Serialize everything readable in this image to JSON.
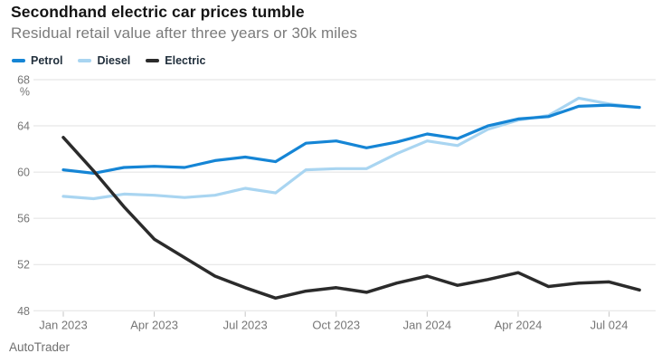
{
  "header": {
    "title": "Secondhand electric car prices tumble",
    "subtitle": "Residual retail value after three years or 30k miles"
  },
  "source": "AutoTrader",
  "colors": {
    "petrol": "#1585d5",
    "diesel": "#a9d5f1",
    "electric": "#2b2b2b",
    "grid": "#e2e2e2",
    "tick": "#c6c6c6",
    "axis_text": "#767676",
    "legend_text": "#22303d"
  },
  "chart_data": {
    "type": "line",
    "title": "Secondhand electric car prices tumble",
    "subtitle": "Residual retail value after three years or 30k miles",
    "unit": "%",
    "x": [
      "Jan 2023",
      "Feb 2023",
      "Mar 2023",
      "Apr 2023",
      "May 2023",
      "Jun 2023",
      "Jul 2023",
      "Aug 2023",
      "Sep 2023",
      "Oct 2023",
      "Nov 2023",
      "Dec 2023",
      "Jan 2024",
      "Feb 2024",
      "Mar 2024",
      "Apr 2024",
      "May 2024",
      "Jun 2024",
      "Jul 2024",
      "Aug 2024"
    ],
    "tick_labels": [
      "Jan 2023",
      "Apr 2023",
      "Jul 2023",
      "Oct 2023",
      "Jan 2024",
      "Apr 2024",
      "Jul 024"
    ],
    "tick_positions": [
      0,
      3,
      6,
      9,
      12,
      15,
      18
    ],
    "ylim": [
      48,
      68
    ],
    "yticks": [
      68,
      64,
      60,
      56,
      52,
      48
    ],
    "grid": true,
    "legend_position": "top-left",
    "series": [
      {
        "name": "Petrol",
        "color": "#1585d5",
        "values": [
          60.2,
          59.9,
          60.4,
          60.5,
          60.4,
          61.0,
          61.3,
          60.9,
          62.5,
          62.7,
          62.1,
          62.6,
          63.3,
          62.9,
          64.0,
          64.6,
          64.8,
          65.7,
          65.8,
          65.6
        ]
      },
      {
        "name": "Diesel",
        "color": "#a9d5f1",
        "values": [
          57.9,
          57.7,
          58.1,
          58.0,
          57.8,
          58.0,
          58.6,
          58.2,
          60.2,
          60.3,
          60.3,
          61.6,
          62.7,
          62.3,
          63.7,
          64.5,
          64.9,
          66.4,
          65.9,
          65.6
        ]
      },
      {
        "name": "Electric",
        "color": "#2b2b2b",
        "values": [
          63.0,
          60.1,
          57.0,
          54.2,
          52.6,
          51.0,
          50.0,
          49.1,
          49.7,
          50.0,
          49.6,
          50.4,
          51.0,
          50.2,
          50.7,
          51.3,
          50.1,
          50.4,
          50.5,
          49.8
        ]
      }
    ]
  }
}
